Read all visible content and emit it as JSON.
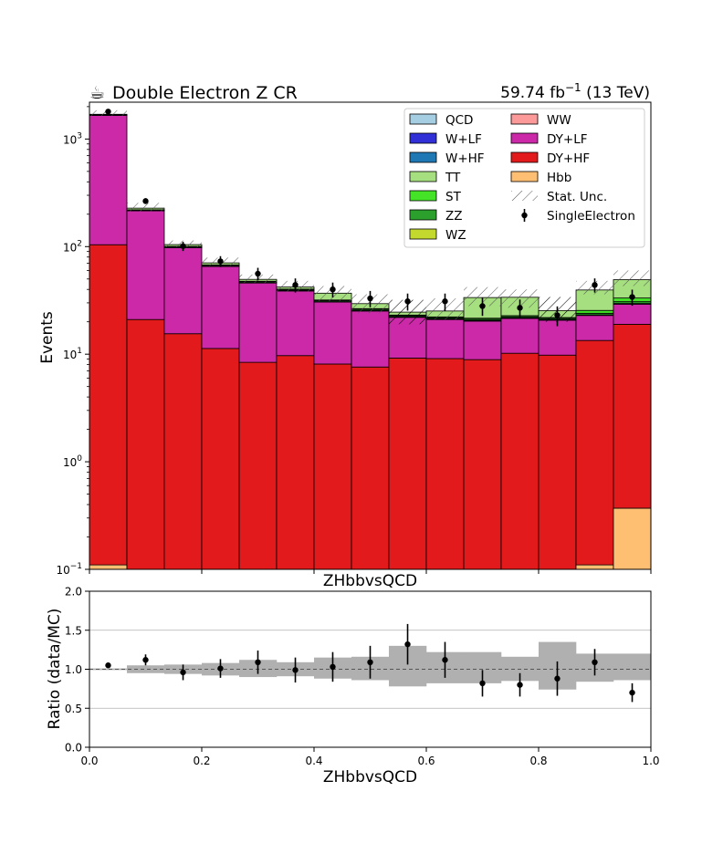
{
  "header": {
    "title_icon": "☕",
    "title": "Double Electron Z CR",
    "lumi_prefix": "59.74 fb",
    "lumi_exp": "−1",
    "lumi_suffix": " (13 TeV)"
  },
  "chart_data": [
    {
      "type": "bar",
      "subtype": "stacked-histogram",
      "ylabel": "Events",
      "xlabel": "ZHbbvsQCD",
      "yscale": "log",
      "ylim": [
        0.1,
        2200
      ],
      "xlim": [
        0.0,
        1.0
      ],
      "y_ticks": [
        {
          "value": 0.1,
          "base": "10",
          "exp": "−1"
        },
        {
          "value": 1,
          "base": "10",
          "exp": "0"
        },
        {
          "value": 10,
          "base": "10",
          "exp": "1"
        },
        {
          "value": 100,
          "base": "10",
          "exp": "2"
        },
        {
          "value": 1000,
          "base": "10",
          "exp": "3"
        }
      ],
      "bin_edges": [
        0.0,
        0.0667,
        0.1333,
        0.2,
        0.2667,
        0.3333,
        0.4,
        0.4667,
        0.5333,
        0.6,
        0.6667,
        0.7333,
        0.8,
        0.8667,
        0.9333,
        1.0
      ],
      "stack_order": [
        "Hbb",
        "DY+HF",
        "DY+LF",
        "WW",
        "WZ",
        "ZZ",
        "ST",
        "TT",
        "W+HF",
        "W+LF",
        "QCD"
      ],
      "series": [
        {
          "name": "Hbb",
          "color": "#ffbf73",
          "values": [
            0.11,
            0,
            0,
            0,
            0,
            0,
            0,
            0,
            0,
            0,
            0,
            0,
            0,
            0.11,
            0.37
          ]
        },
        {
          "name": "DY+HF",
          "color": "#e31a1c",
          "values": [
            104,
            21,
            15.5,
            11.3,
            8.4,
            9.7,
            8.1,
            7.6,
            9.2,
            9.1,
            8.9,
            10.2,
            9.8,
            13.3,
            18.6
          ]
        },
        {
          "name": "DY+LF",
          "color": "#cc29a8",
          "values": [
            1556,
            194,
            82,
            54,
            37.5,
            29,
            22.4,
            17.6,
            12.8,
            11.9,
            11.4,
            11.3,
            10.9,
            9.5,
            10.2
          ]
        },
        {
          "name": "WW",
          "color": "#fb9a99",
          "values": [
            2,
            0.5,
            0.3,
            0.2,
            0.1,
            0.1,
            0.1,
            0.1,
            0.1,
            0.1,
            0.1,
            0.1,
            0.1,
            0.1,
            0.1
          ]
        },
        {
          "name": "WZ",
          "color": "#c4d92e",
          "values": [
            3,
            0.8,
            0.5,
            0.4,
            0.3,
            0.3,
            0.2,
            0.2,
            0.2,
            0.2,
            0.2,
            0.2,
            0.2,
            0.2,
            0.3
          ]
        },
        {
          "name": "ZZ",
          "color": "#2ca02c",
          "values": [
            12,
            2.5,
            1.5,
            1.2,
            0.9,
            0.8,
            0.7,
            0.6,
            0.5,
            0.5,
            0.5,
            0.5,
            0.5,
            0.8,
            1.2
          ]
        },
        {
          "name": "ST",
          "color": "#44e327",
          "values": [
            3,
            1,
            0.6,
            0.5,
            0.4,
            0.4,
            0.4,
            0.4,
            0.3,
            0.4,
            0.5,
            0.5,
            0.4,
            1.5,
            2.5
          ]
        },
        {
          "name": "TT",
          "color": "#a6df7f",
          "values": [
            18,
            8,
            4,
            3,
            2,
            1.8,
            5,
            3,
            1.5,
            3,
            12,
            11,
            3.5,
            14,
            16
          ]
        },
        {
          "name": "W+HF",
          "color": "#1f78b4",
          "values": [
            0.5,
            0.1,
            0,
            0,
            0,
            0,
            0,
            0,
            0,
            0,
            0,
            0,
            0,
            0,
            0
          ]
        },
        {
          "name": "W+LF",
          "color": "#3030d6",
          "values": [
            0.5,
            0.1,
            0,
            0,
            0,
            0,
            0,
            0,
            0,
            0,
            0,
            0,
            0,
            0,
            0
          ]
        },
        {
          "name": "QCD",
          "color": "#a6cee3",
          "values": [
            0,
            0,
            0,
            0,
            0,
            0,
            0,
            0,
            0,
            0,
            0,
            0,
            0,
            0,
            0
          ]
        }
      ],
      "stat_unc": {
        "name": "Stat. Unc.",
        "lo": [
          1650,
          212,
          98,
          66,
          46,
          38,
          31,
          24,
          19,
          21,
          28,
          27,
          20,
          36,
          43
        ],
        "hi": [
          1850,
          255,
          114,
          79,
          55,
          48,
          43,
          36,
          32,
          33,
          42,
          40,
          34,
          48,
          60
        ]
      },
      "data": {
        "name": "SingleElectron",
        "x": [
          0.0333,
          0.1,
          0.1667,
          0.2333,
          0.3,
          0.3667,
          0.4333,
          0.5,
          0.5667,
          0.6333,
          0.7,
          0.7667,
          0.8333,
          0.9,
          0.9667
        ],
        "y": [
          1800,
          265,
          101,
          73,
          56,
          44,
          40,
          33,
          31,
          31,
          28,
          27,
          23,
          44,
          34
        ],
        "err": [
          42,
          16,
          10,
          8.5,
          7.5,
          6.6,
          6.3,
          5.7,
          5.6,
          5.6,
          5.3,
          5.2,
          4.8,
          6.6,
          5.8
        ]
      },
      "legend": {
        "placement": "top-right",
        "columns": [
          [
            {
              "label": "QCD",
              "kind": "box",
              "color": "#a6cee3"
            },
            {
              "label": "W+LF",
              "kind": "box",
              "color": "#3030d6"
            },
            {
              "label": "W+HF",
              "kind": "box",
              "color": "#1f78b4"
            },
            {
              "label": "TT",
              "kind": "box",
              "color": "#a6df7f"
            },
            {
              "label": "ST",
              "kind": "box",
              "color": "#44e327"
            },
            {
              "label": "ZZ",
              "kind": "box",
              "color": "#2ca02c"
            },
            {
              "label": "WZ",
              "kind": "box",
              "color": "#c4d92e"
            }
          ],
          [
            {
              "label": "WW",
              "kind": "box",
              "color": "#fb9a99"
            },
            {
              "label": "DY+LF",
              "kind": "box",
              "color": "#cc29a8"
            },
            {
              "label": "DY+HF",
              "kind": "box",
              "color": "#e31a1c"
            },
            {
              "label": "Hbb",
              "kind": "box",
              "color": "#ffbf73"
            },
            {
              "label": "Stat. Unc.",
              "kind": "hatch",
              "color": "#888888"
            },
            {
              "label": "SingleElectron",
              "kind": "point",
              "color": "#000000"
            }
          ]
        ]
      }
    },
    {
      "type": "scatter",
      "subtype": "ratio",
      "title": "ZHbbvsQCD",
      "ylabel": "Ratio (data/MC)",
      "xlabel": "ZHbbvsQCD",
      "ylim": [
        0.0,
        2.0
      ],
      "xlim": [
        0.0,
        1.0
      ],
      "grid": "horizontal",
      "reference_line": 1.0,
      "y_ticks": [
        "0.0",
        "0.5",
        "1.0",
        "1.5",
        "2.0"
      ],
      "x_ticks": [
        "0.0",
        "0.2",
        "0.4",
        "0.6",
        "0.8",
        "1.0"
      ],
      "band_color": "#b0b0b0",
      "band": {
        "lo": [
          0.99,
          0.95,
          0.94,
          0.92,
          0.9,
          0.91,
          0.88,
          0.86,
          0.78,
          0.82,
          0.82,
          0.85,
          0.74,
          0.84,
          0.86
        ],
        "hi": [
          1.01,
          1.05,
          1.06,
          1.08,
          1.12,
          1.09,
          1.15,
          1.16,
          1.3,
          1.22,
          1.22,
          1.16,
          1.35,
          1.2,
          1.2
        ]
      },
      "x": [
        0.0333,
        0.1,
        0.1667,
        0.2333,
        0.3,
        0.3667,
        0.4333,
        0.5,
        0.5667,
        0.6333,
        0.7,
        0.7667,
        0.8333,
        0.9,
        0.9667
      ],
      "y": [
        1.05,
        1.12,
        0.96,
        1.01,
        1.09,
        0.99,
        1.03,
        1.09,
        1.32,
        1.12,
        0.82,
        0.8,
        0.88,
        1.09,
        0.7
      ],
      "err": [
        0.03,
        0.07,
        0.1,
        0.12,
        0.15,
        0.16,
        0.19,
        0.21,
        0.26,
        0.23,
        0.17,
        0.15,
        0.22,
        0.17,
        0.12
      ]
    }
  ]
}
